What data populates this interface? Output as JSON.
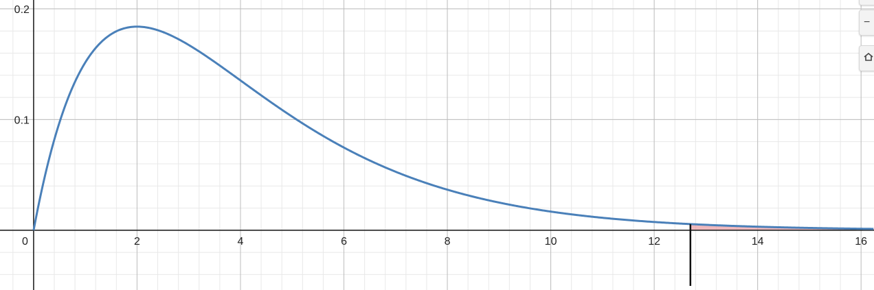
{
  "chart_data": {
    "type": "line",
    "title": "",
    "xlabel": "",
    "ylabel": "",
    "xlim": [
      -0.65,
      16.25
    ],
    "ylim": [
      -0.054,
      0.208
    ],
    "x_ticks": [
      "2",
      "4",
      "6",
      "8",
      "10",
      "12",
      "14",
      "16"
    ],
    "y_ticks": [
      "0.1",
      "0.2"
    ],
    "origin_label": "0",
    "grid": true,
    "legend": "none",
    "series": [
      {
        "color": "#4a80b9",
        "x": [
          0,
          0.25,
          0.5,
          0.75,
          1,
          1.5,
          2,
          2.5,
          3,
          3.5,
          4,
          5,
          6,
          7,
          8,
          9,
          10,
          11,
          12,
          13,
          14,
          15,
          16,
          16.25
        ],
        "y": [
          0,
          0.0441,
          0.0778,
          0.1031,
          0.1213,
          0.1417,
          0.1839,
          0.1791,
          0.1673,
          0.1517,
          0.1353,
          0.1026,
          0.0747,
          0.0528,
          0.0366,
          0.025,
          0.0168,
          0.0112,
          0.0074,
          0.0049,
          0.0032,
          0.0021,
          0.0013,
          0.0012
        ]
      }
    ],
    "shaded_region": {
      "from": 12.7,
      "to": 16.25,
      "color": "#e8a0a6"
    },
    "critical_value": 12.7
  },
  "controls": {
    "zoom_in_icon": "plus-icon",
    "zoom_out_icon": "minus-icon",
    "home_icon": "home-icon"
  }
}
